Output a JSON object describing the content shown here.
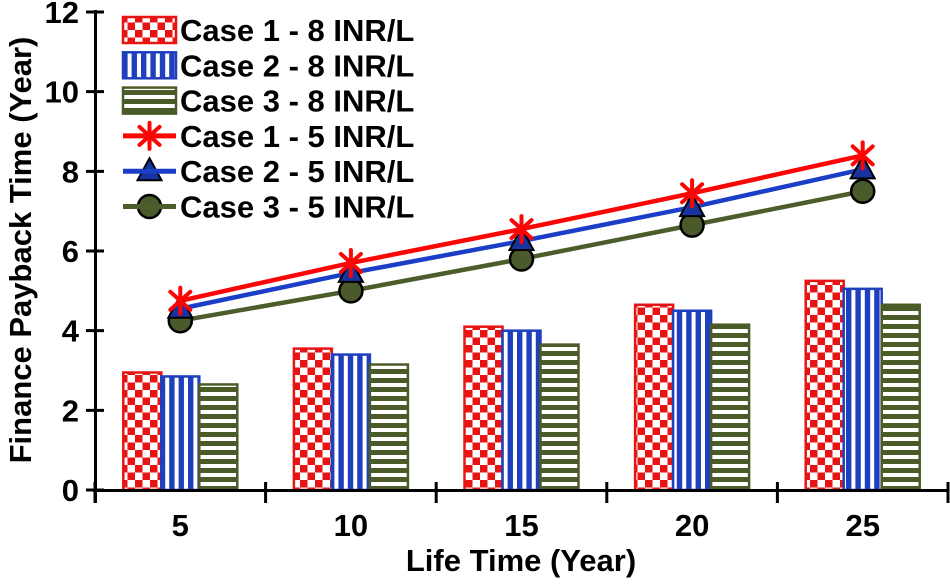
{
  "chart_data": {
    "type": "bar+line combo",
    "title": "",
    "xlabel": "Life Time (Year)",
    "ylabel": "Finance Payback Time (Year)",
    "categories": [
      5,
      10,
      15,
      20,
      25
    ],
    "ylim": [
      0,
      12
    ],
    "yticks": [
      0,
      2,
      4,
      6,
      8,
      10,
      12
    ],
    "grid": false,
    "legend_position": "top-left-inside",
    "axis_color": "#000000",
    "series": [
      {
        "name": "Case 1 - 8 INR/L",
        "type": "bar",
        "pattern": "checker",
        "color": "#e81414",
        "values": [
          2.95,
          3.55,
          4.1,
          4.65,
          5.25
        ]
      },
      {
        "name": "Case 2 - 8 INR/L",
        "type": "bar",
        "pattern": "vstripe",
        "color": "#1e3fbe",
        "values": [
          2.85,
          3.4,
          4.0,
          4.5,
          5.05
        ]
      },
      {
        "name": "Case 3 - 8 INR/L",
        "type": "bar",
        "pattern": "hstripe",
        "color": "#4b5b28",
        "values": [
          2.65,
          3.15,
          3.65,
          4.15,
          4.65
        ]
      },
      {
        "name": "Case 1 - 5 INR/L",
        "type": "line",
        "marker": "asterisk",
        "color": "#fb0505",
        "marker_color": "#fb0505",
        "values": [
          4.75,
          5.7,
          6.55,
          7.45,
          8.4
        ]
      },
      {
        "name": "Case 2 - 5 INR/L",
        "type": "line",
        "marker": "triangle",
        "color": "#1b3ec6",
        "marker_color": "#1733a0",
        "values": [
          4.55,
          5.45,
          6.25,
          7.1,
          8.05
        ]
      },
      {
        "name": "Case 3 - 5 INR/L",
        "type": "line",
        "marker": "circle",
        "color": "#4c5c2b",
        "marker_color": "#4a5a2b",
        "values": [
          4.25,
          5.0,
          5.8,
          6.65,
          7.5
        ]
      }
    ]
  }
}
